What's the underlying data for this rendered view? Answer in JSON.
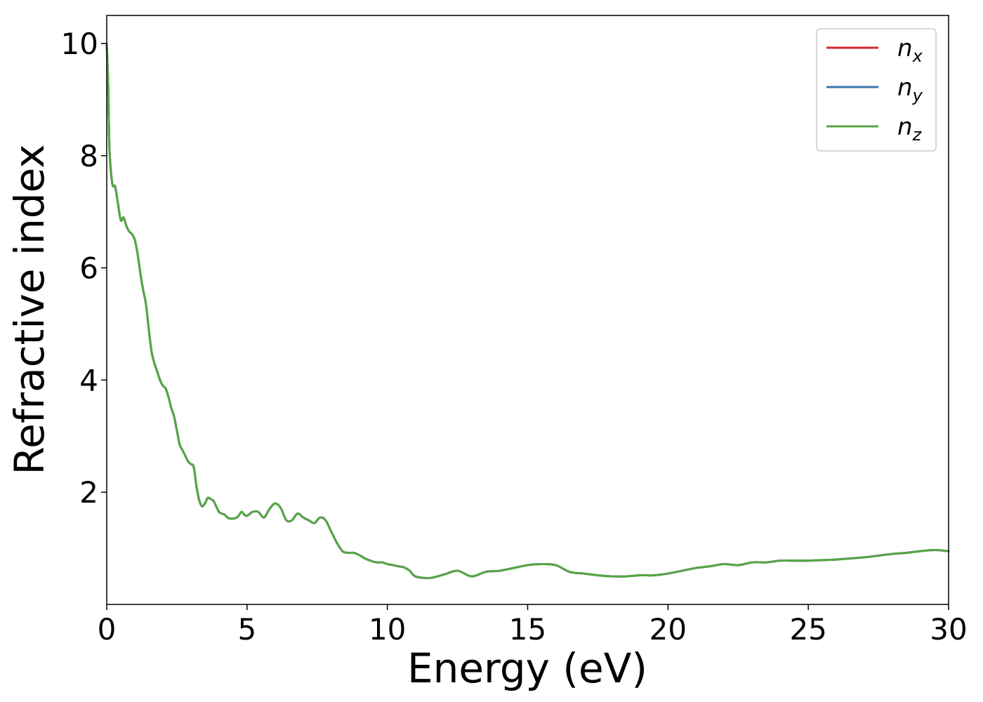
{
  "chart_data": {
    "type": "line",
    "title": "",
    "xlabel": "Energy (eV)",
    "ylabel": "Refractive index",
    "xlim": [
      0,
      30
    ],
    "ylim": [
      0,
      10.5
    ],
    "xticks": [
      0,
      5,
      10,
      15,
      20,
      25,
      30
    ],
    "xtick_labels": [
      "0",
      "5",
      "10",
      "15",
      "20",
      "25",
      "30"
    ],
    "yticks": [
      2,
      4,
      6,
      8,
      10
    ],
    "ytick_labels": [
      "2",
      "4",
      "6",
      "8",
      "10"
    ],
    "grid": false,
    "legend_position": "top-right",
    "legend": [
      {
        "base": "n",
        "sub": "x",
        "color": "#d62728"
      },
      {
        "base": "n",
        "sub": "y",
        "color": "#3b75af"
      },
      {
        "base": "n",
        "sub": "z",
        "color": "#55a645"
      }
    ],
    "series": [
      {
        "name": "n_x",
        "color": "#d62728",
        "x": [
          0,
          0.05,
          0.1,
          0.2,
          0.3,
          0.4,
          0.5,
          0.6,
          0.7,
          0.8,
          0.9,
          1.0,
          1.1,
          1.2,
          1.3,
          1.4,
          1.5,
          1.6,
          1.7,
          1.8,
          1.9,
          2.0,
          2.1,
          2.2,
          2.3,
          2.4,
          2.5,
          2.6,
          2.7,
          2.8,
          2.9,
          3.0,
          3.1,
          3.2,
          3.3,
          3.4,
          3.5,
          3.6,
          3.7,
          3.8,
          3.9,
          4.0,
          4.1,
          4.2,
          4.3,
          4.4,
          4.5,
          4.6,
          4.7,
          4.8,
          4.9,
          5.0,
          5.2,
          5.4,
          5.6,
          5.8,
          6.0,
          6.2,
          6.4,
          6.6,
          6.8,
          7.0,
          7.2,
          7.4,
          7.6,
          7.8,
          8.0,
          8.2,
          8.4,
          8.6,
          8.8,
          9.0,
          9.2,
          9.4,
          9.6,
          9.8,
          10.0,
          10.2,
          10.4,
          10.6,
          10.8,
          11.0,
          11.5,
          12.0,
          12.5,
          13.0,
          13.5,
          14.0,
          14.5,
          15.0,
          15.5,
          16.0,
          16.5,
          17.0,
          17.5,
          18.0,
          18.5,
          19.0,
          19.5,
          20.0,
          20.5,
          21.0,
          21.5,
          22.0,
          22.5,
          23.0,
          23.5,
          24.0,
          24.5,
          25.0,
          25.5,
          26.0,
          26.5,
          27.0,
          27.5,
          28.0,
          28.5,
          29.0,
          29.5,
          30.0
        ],
        "y": [
          10.0,
          9.3,
          8.1,
          7.5,
          7.45,
          7.15,
          6.85,
          6.9,
          6.75,
          6.65,
          6.6,
          6.5,
          6.25,
          5.9,
          5.6,
          5.35,
          4.9,
          4.5,
          4.3,
          4.15,
          4.0,
          3.9,
          3.85,
          3.7,
          3.5,
          3.35,
          3.1,
          2.85,
          2.75,
          2.65,
          2.55,
          2.5,
          2.45,
          2.1,
          1.85,
          1.75,
          1.8,
          1.9,
          1.88,
          1.85,
          1.75,
          1.65,
          1.62,
          1.6,
          1.55,
          1.53,
          1.53,
          1.54,
          1.58,
          1.65,
          1.6,
          1.58,
          1.65,
          1.65,
          1.55,
          1.7,
          1.8,
          1.72,
          1.5,
          1.5,
          1.62,
          1.55,
          1.5,
          1.45,
          1.55,
          1.5,
          1.3,
          1.1,
          0.95,
          0.92,
          0.92,
          0.88,
          0.82,
          0.78,
          0.75,
          0.75,
          0.72,
          0.7,
          0.68,
          0.66,
          0.6,
          0.5,
          0.47,
          0.53,
          0.6,
          0.5,
          0.58,
          0.6,
          0.65,
          0.7,
          0.72,
          0.7,
          0.58,
          0.55,
          0.52,
          0.5,
          0.5,
          0.52,
          0.52,
          0.55,
          0.6,
          0.65,
          0.68,
          0.72,
          0.7,
          0.75,
          0.75,
          0.78,
          0.78,
          0.78,
          0.79,
          0.8,
          0.82,
          0.84,
          0.87,
          0.9,
          0.92,
          0.95,
          0.97,
          0.95
        ]
      },
      {
        "name": "n_y",
        "color": "#3b75af",
        "x": [
          0,
          0.05,
          0.1,
          0.2,
          0.3,
          0.4,
          0.5,
          0.6,
          0.7,
          0.8,
          0.9,
          1.0,
          1.1,
          1.2,
          1.3,
          1.4,
          1.5,
          1.6,
          1.7,
          1.8,
          1.9,
          2.0,
          2.1,
          2.2,
          2.3,
          2.4,
          2.5,
          2.6,
          2.7,
          2.8,
          2.9,
          3.0,
          3.1,
          3.2,
          3.3,
          3.4,
          3.5,
          3.6,
          3.7,
          3.8,
          3.9,
          4.0,
          4.1,
          4.2,
          4.3,
          4.4,
          4.5,
          4.6,
          4.7,
          4.8,
          4.9,
          5.0,
          5.2,
          5.4,
          5.6,
          5.8,
          6.0,
          6.2,
          6.4,
          6.6,
          6.8,
          7.0,
          7.2,
          7.4,
          7.6,
          7.8,
          8.0,
          8.2,
          8.4,
          8.6,
          8.8,
          9.0,
          9.2,
          9.4,
          9.6,
          9.8,
          10.0,
          10.2,
          10.4,
          10.6,
          10.8,
          11.0,
          11.5,
          12.0,
          12.5,
          13.0,
          13.5,
          14.0,
          14.5,
          15.0,
          15.5,
          16.0,
          16.5,
          17.0,
          17.5,
          18.0,
          18.5,
          19.0,
          19.5,
          20.0,
          20.5,
          21.0,
          21.5,
          22.0,
          22.5,
          23.0,
          23.5,
          24.0,
          24.5,
          25.0,
          25.5,
          26.0,
          26.5,
          27.0,
          27.5,
          28.0,
          28.5,
          29.0,
          29.5,
          30.0
        ],
        "y": [
          10.0,
          9.3,
          8.1,
          7.5,
          7.45,
          7.15,
          6.85,
          6.9,
          6.75,
          6.65,
          6.6,
          6.5,
          6.25,
          5.9,
          5.6,
          5.35,
          4.9,
          4.5,
          4.3,
          4.15,
          4.0,
          3.9,
          3.85,
          3.7,
          3.5,
          3.35,
          3.1,
          2.85,
          2.75,
          2.65,
          2.55,
          2.5,
          2.45,
          2.1,
          1.85,
          1.75,
          1.8,
          1.9,
          1.88,
          1.85,
          1.75,
          1.65,
          1.62,
          1.6,
          1.55,
          1.53,
          1.53,
          1.54,
          1.58,
          1.65,
          1.6,
          1.58,
          1.65,
          1.65,
          1.55,
          1.7,
          1.8,
          1.72,
          1.5,
          1.5,
          1.62,
          1.55,
          1.5,
          1.45,
          1.55,
          1.5,
          1.3,
          1.1,
          0.95,
          0.92,
          0.92,
          0.88,
          0.82,
          0.78,
          0.75,
          0.75,
          0.72,
          0.7,
          0.68,
          0.66,
          0.6,
          0.5,
          0.47,
          0.53,
          0.6,
          0.5,
          0.58,
          0.6,
          0.65,
          0.7,
          0.72,
          0.7,
          0.58,
          0.55,
          0.52,
          0.5,
          0.5,
          0.52,
          0.52,
          0.55,
          0.6,
          0.65,
          0.68,
          0.72,
          0.7,
          0.75,
          0.75,
          0.78,
          0.78,
          0.78,
          0.79,
          0.8,
          0.82,
          0.84,
          0.87,
          0.9,
          0.92,
          0.95,
          0.97,
          0.95
        ]
      },
      {
        "name": "n_z",
        "color": "#55a645",
        "x": [
          0,
          0.05,
          0.1,
          0.2,
          0.3,
          0.4,
          0.5,
          0.6,
          0.7,
          0.8,
          0.9,
          1.0,
          1.1,
          1.2,
          1.3,
          1.4,
          1.5,
          1.6,
          1.7,
          1.8,
          1.9,
          2.0,
          2.1,
          2.2,
          2.3,
          2.4,
          2.5,
          2.6,
          2.7,
          2.8,
          2.9,
          3.0,
          3.1,
          3.2,
          3.3,
          3.4,
          3.5,
          3.6,
          3.7,
          3.8,
          3.9,
          4.0,
          4.1,
          4.2,
          4.3,
          4.4,
          4.5,
          4.6,
          4.7,
          4.8,
          4.9,
          5.0,
          5.2,
          5.4,
          5.6,
          5.8,
          6.0,
          6.2,
          6.4,
          6.6,
          6.8,
          7.0,
          7.2,
          7.4,
          7.6,
          7.8,
          8.0,
          8.2,
          8.4,
          8.6,
          8.8,
          9.0,
          9.2,
          9.4,
          9.6,
          9.8,
          10.0,
          10.2,
          10.4,
          10.6,
          10.8,
          11.0,
          11.5,
          12.0,
          12.5,
          13.0,
          13.5,
          14.0,
          14.5,
          15.0,
          15.5,
          16.0,
          16.5,
          17.0,
          17.5,
          18.0,
          18.5,
          19.0,
          19.5,
          20.0,
          20.5,
          21.0,
          21.5,
          22.0,
          22.5,
          23.0,
          23.5,
          24.0,
          24.5,
          25.0,
          25.5,
          26.0,
          26.5,
          27.0,
          27.5,
          28.0,
          28.5,
          29.0,
          29.5,
          30.0
        ],
        "y": [
          10.0,
          9.3,
          8.1,
          7.5,
          7.45,
          7.15,
          6.85,
          6.9,
          6.75,
          6.65,
          6.6,
          6.5,
          6.25,
          5.9,
          5.6,
          5.35,
          4.9,
          4.5,
          4.3,
          4.15,
          4.0,
          3.9,
          3.85,
          3.7,
          3.5,
          3.35,
          3.1,
          2.85,
          2.75,
          2.65,
          2.55,
          2.5,
          2.45,
          2.1,
          1.85,
          1.75,
          1.8,
          1.9,
          1.88,
          1.85,
          1.75,
          1.65,
          1.62,
          1.6,
          1.55,
          1.53,
          1.53,
          1.54,
          1.58,
          1.65,
          1.6,
          1.58,
          1.65,
          1.65,
          1.55,
          1.7,
          1.8,
          1.72,
          1.5,
          1.5,
          1.62,
          1.55,
          1.5,
          1.45,
          1.55,
          1.5,
          1.3,
          1.1,
          0.95,
          0.92,
          0.92,
          0.88,
          0.82,
          0.78,
          0.75,
          0.75,
          0.72,
          0.7,
          0.68,
          0.66,
          0.6,
          0.5,
          0.47,
          0.53,
          0.6,
          0.5,
          0.58,
          0.6,
          0.65,
          0.7,
          0.72,
          0.7,
          0.58,
          0.55,
          0.52,
          0.5,
          0.5,
          0.52,
          0.52,
          0.55,
          0.6,
          0.65,
          0.68,
          0.72,
          0.7,
          0.75,
          0.75,
          0.78,
          0.78,
          0.78,
          0.79,
          0.8,
          0.82,
          0.84,
          0.87,
          0.9,
          0.92,
          0.95,
          0.97,
          0.95
        ]
      }
    ]
  }
}
